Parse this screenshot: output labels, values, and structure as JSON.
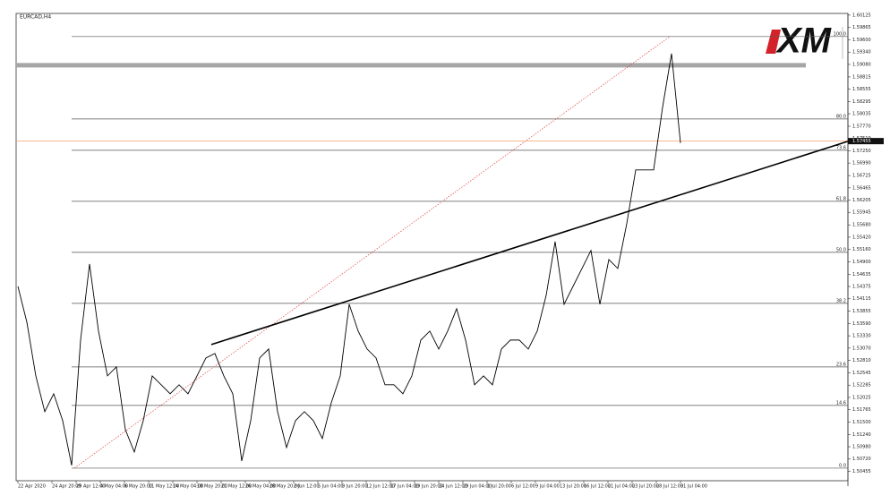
{
  "chart_data": {
    "type": "line",
    "title": "EURCAD,H4",
    "logo": "XM",
    "line_color": "#000000",
    "fib_color": "#555555",
    "fib_ray_color": "#e04040",
    "zone_color": "#a6a6a6",
    "current_color": "#f4a070",
    "x_labels": [
      "22 Apr 2020",
      "24 Apr 20:00",
      "29 Apr 12:00",
      "4 May 04:00",
      "6 May 20:00",
      "11 May 12:00",
      "14 May 04:00",
      "18 May 20:00",
      "21 May 12:00",
      "26 May 04:00",
      "28 May 20:00",
      "2 Jun 12:00",
      "5 Jun 04:00",
      "9 Jun 20:00",
      "12 Jun 12:00",
      "17 Jun 04:00",
      "19 Jun 20:00",
      "24 Jun 12:00",
      "29 Jun 04:00",
      "1 Jul 20:00",
      "6 Jul 12:00",
      "9 Jul 04:00",
      "13 Jul 20:00",
      "16 Jul 12:00",
      "21 Jul 04:00",
      "23 Jul 20:00",
      "28 Jul 12:00",
      "31 Jul 04:00"
    ],
    "values": [
      1.54378,
      1.53619,
      1.52481,
      1.51723,
      1.52102,
      1.51533,
      1.50585,
      1.5324,
      1.54852,
      1.5343,
      1.52481,
      1.52671,
      1.51343,
      1.50869,
      1.51533,
      1.52481,
      1.52292,
      1.52102,
      1.52292,
      1.52102,
      1.52481,
      1.52861,
      1.52955,
      1.52481,
      1.52102,
      1.50679,
      1.51533,
      1.52861,
      1.5305,
      1.51723,
      1.50964,
      1.51533,
      1.51723,
      1.51533,
      1.51154,
      1.51912,
      1.52481,
      1.53999,
      1.5343,
      1.5305,
      1.52861,
      1.52292,
      1.52292,
      1.52102,
      1.52481,
      1.5324,
      1.5343,
      1.5305,
      1.5343,
      1.53904,
      1.5324,
      1.52292,
      1.52481,
      1.52292,
      1.5305,
      1.5324,
      1.5324,
      1.5305,
      1.5343,
      1.54188,
      1.55326,
      1.53999,
      1.54378,
      1.54757,
      1.55137,
      1.53999,
      1.54947,
      1.54757,
      1.55706,
      1.56844,
      1.56844,
      1.56844,
      1.58171,
      1.59309,
      1.57413
    ],
    "ylim": [
      1.5026,
      1.6016
    ],
    "yticks": [
      1.60125,
      1.59865,
      {
        "value": 1.596,
        "label": "1.59600"
      },
      {
        "value": 1.5934,
        "label": "1.59340"
      },
      {
        "value": 1.5908,
        "label": "1.59080"
      },
      1.58815,
      1.58555,
      1.58295,
      1.58035,
      {
        "value": 1.5777,
        "label": "1.57770"
      },
      {
        "value": 1.5751,
        "label": "1.57510"
      },
      {
        "value": 1.5725,
        "label": "1.57250"
      },
      {
        "value": 1.5699,
        "label": "1.56990"
      },
      1.56725,
      1.56465,
      1.56205,
      1.55945,
      {
        "value": 1.5568,
        "label": "1.55680"
      },
      {
        "value": 1.5542,
        "label": "1.55420"
      },
      {
        "value": 1.5516,
        "label": "1.55160"
      },
      {
        "value": 1.549,
        "label": "1.54900"
      },
      1.54635,
      1.54375,
      1.54115,
      1.53855,
      {
        "value": 1.5359,
        "label": "1.53590"
      },
      {
        "value": 1.5333,
        "label": "1.53330"
      },
      {
        "value": 1.5307,
        "label": "1.53070"
      },
      {
        "value": 1.5281,
        "label": "1.52810"
      },
      1.52545,
      1.52285,
      1.52025,
      1.51765,
      {
        "value": 1.515,
        "label": "1.51500"
      },
      {
        "value": 1.5124,
        "label": "1.51240"
      },
      {
        "value": 1.5098,
        "label": "1.50980"
      },
      {
        "value": 1.5072,
        "label": "1.50720"
      },
      1.50455
    ],
    "fib_levels": [
      {
        "label": "100.0",
        "value": 1.5967
      },
      {
        "label": "80.0",
        "value": 1.57925
      },
      {
        "label": "73.6",
        "value": 1.57261
      },
      {
        "label": "61.8",
        "value": 1.5618
      },
      {
        "label": "50.0",
        "value": 1.55099
      },
      {
        "label": "38.2",
        "value": 1.54018
      },
      {
        "label": "23.6",
        "value": 1.52671
      },
      {
        "label": "14.6",
        "value": 1.51856
      },
      {
        "label": "0.0",
        "value": 1.50527
      }
    ],
    "zone": 1.59062,
    "trendline": {
      "start": 1.53145,
      "end": 1.57451
    },
    "current_price": 1.57455
  }
}
